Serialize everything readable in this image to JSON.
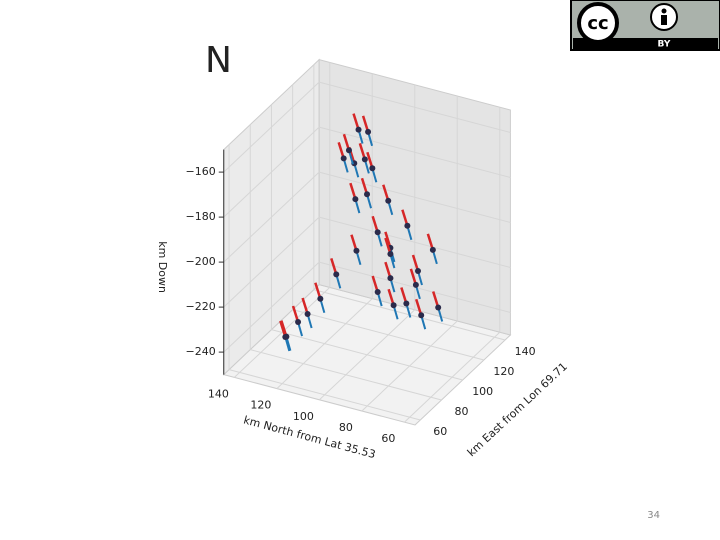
{
  "slide": {
    "title": "N",
    "page_number": "34",
    "license": {
      "cc": "cc",
      "by": "BY"
    }
  },
  "chart_data": {
    "type": "scatter3d",
    "xlabel": "km East from Lon 69.71",
    "ylabel": "km North from Lat 35.53",
    "zlabel": "km Down",
    "x": [
      120,
      115,
      125,
      110,
      118,
      128,
      105,
      112,
      122,
      130,
      108,
      116,
      124,
      100,
      95,
      132,
      126,
      119,
      102,
      113,
      138,
      85,
      80,
      88,
      92,
      83,
      121,
      127,
      109,
      134
    ],
    "y": [
      110,
      105,
      112,
      100,
      98,
      104,
      108,
      95,
      100,
      96,
      115,
      112,
      118,
      105,
      112,
      92,
      90,
      118,
      96,
      88,
      120,
      125,
      128,
      122,
      118,
      130,
      85,
      80,
      92,
      86
    ],
    "z": [
      -190,
      -175,
      -165,
      -200,
      -210,
      -195,
      -185,
      -220,
      -215,
      -205,
      -170,
      -160,
      -180,
      -205,
      -215,
      -225,
      -228,
      -172,
      -222,
      -230,
      -185,
      -235,
      -240,
      -232,
      -226,
      -242,
      -238,
      -236,
      -230,
      -215
    ],
    "color": "#d62728",
    "color2": "#1f77b4",
    "point_color": "#2b2b4b",
    "xlim": [
      55,
      145
    ],
    "ylim": [
      55,
      145
    ],
    "zlim": [
      -250,
      -150
    ],
    "xticks": [
      60,
      80,
      100,
      120,
      140
    ],
    "yticks": [
      140,
      120,
      100,
      80,
      60
    ],
    "zticks": [
      {
        "value": -160,
        "label": "−160"
      },
      {
        "value": -180,
        "label": "−180"
      },
      {
        "value": -200,
        "label": "−200"
      },
      {
        "value": -220,
        "label": "−220"
      },
      {
        "value": -240,
        "label": "−240"
      }
    ],
    "grid": true
  }
}
